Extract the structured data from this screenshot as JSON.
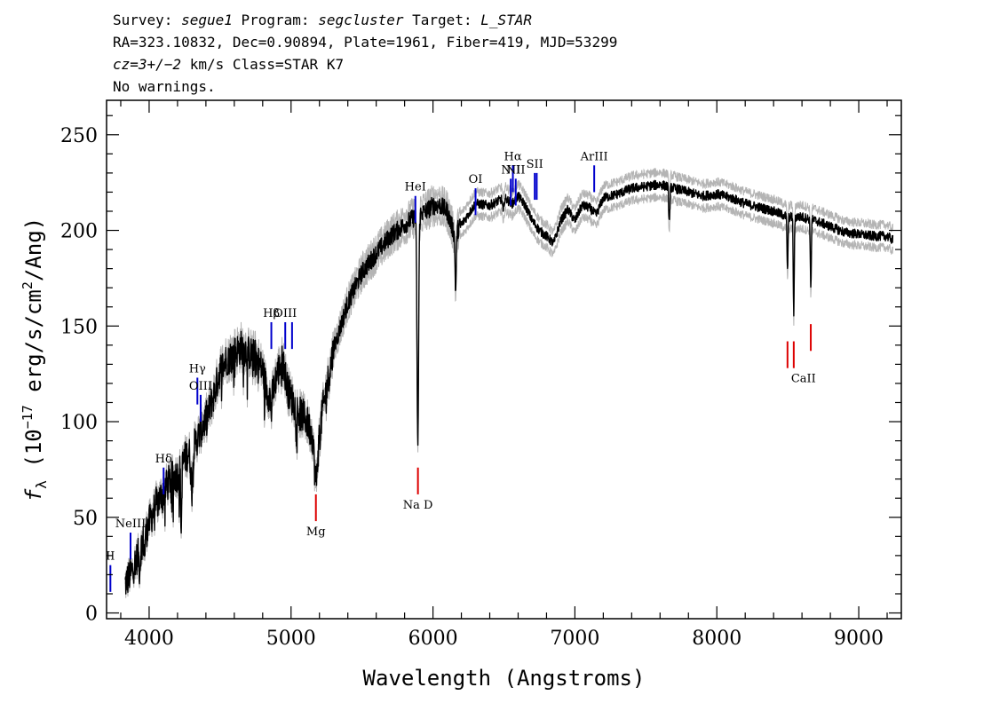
{
  "header": {
    "line1": [
      {
        "text": "Survey: ",
        "italic": false
      },
      {
        "text": "segue1",
        "italic": true
      },
      {
        "text": " Program: ",
        "italic": false
      },
      {
        "text": "segcluster",
        "italic": true
      },
      {
        "text": " Target: ",
        "italic": false
      },
      {
        "text": "L_STAR",
        "italic": true
      }
    ],
    "line2": "RA=323.10832, Dec=0.90894, Plate=1961, Fiber=419, MJD=53299",
    "line3": [
      {
        "text": "cz=3+/−2",
        "italic": true
      },
      {
        "text": " km/s Class=STAR K7",
        "italic": false
      }
    ],
    "line4": "No warnings."
  },
  "chart_data": {
    "type": "line",
    "xlabel": "Wavelength (Angstroms)",
    "ylabel": "f_λ (10^-17 erg/s/cm^2/Ang)",
    "ylabel_parts": {
      "f": "f",
      "lambda": "λ",
      "open": " (10",
      "exp1": "−17",
      "mid": " erg/s/cm",
      "exp2": "2",
      "close": "/Ang)"
    },
    "xlim": [
      3700,
      9300
    ],
    "ylim": [
      -3,
      268
    ],
    "x_ticks": [
      4000,
      5000,
      6000,
      7000,
      8000,
      9000
    ],
    "x_tick_labels": [
      "4000",
      "5000",
      "6000",
      "7000",
      "8000",
      "9000"
    ],
    "y_ticks": [
      0,
      50,
      100,
      150,
      200,
      250
    ],
    "y_tick_labels": [
      "0",
      "50",
      "100",
      "150",
      "200",
      "250"
    ],
    "grid": false,
    "series": [
      {
        "color": "#000000",
        "error_color": "#b4b4b4",
        "continuum_points": [
          [
            3830,
            15
          ],
          [
            3880,
            22
          ],
          [
            3950,
            36
          ],
          [
            4000,
            47
          ],
          [
            4050,
            57
          ],
          [
            4100,
            63
          ],
          [
            4150,
            70
          ],
          [
            4200,
            72
          ],
          [
            4260,
            82
          ],
          [
            4320,
            88
          ],
          [
            4380,
            98
          ],
          [
            4420,
            105
          ],
          [
            4460,
            115
          ],
          [
            4500,
            127
          ],
          [
            4550,
            133
          ],
          [
            4600,
            136
          ],
          [
            4650,
            139
          ],
          [
            4700,
            136
          ],
          [
            4750,
            134
          ],
          [
            4800,
            127
          ],
          [
            4830,
            116
          ],
          [
            4860,
            112
          ],
          [
            4900,
            125
          ],
          [
            4940,
            132
          ],
          [
            4980,
            116
          ],
          [
            5050,
            105
          ],
          [
            5100,
            102
          ],
          [
            5150,
            93
          ],
          [
            5180,
            78
          ],
          [
            5220,
            105
          ],
          [
            5300,
            138
          ],
          [
            5400,
            162
          ],
          [
            5500,
            178
          ],
          [
            5600,
            188
          ],
          [
            5700,
            197
          ],
          [
            5800,
            203
          ],
          [
            5890,
            208
          ],
          [
            5950,
            210
          ],
          [
            6000,
            213
          ],
          [
            6050,
            213
          ],
          [
            6100,
            210
          ],
          [
            6150,
            198
          ],
          [
            6200,
            203
          ],
          [
            6300,
            214
          ],
          [
            6400,
            213
          ],
          [
            6500,
            217
          ],
          [
            6560,
            214
          ],
          [
            6600,
            218
          ],
          [
            6650,
            213
          ],
          [
            6700,
            205
          ],
          [
            6750,
            200
          ],
          [
            6800,
            197
          ],
          [
            6850,
            193
          ],
          [
            6900,
            205
          ],
          [
            6950,
            211
          ],
          [
            7000,
            205
          ],
          [
            7050,
            213
          ],
          [
            7100,
            212
          ],
          [
            7150,
            208
          ],
          [
            7200,
            217
          ],
          [
            7300,
            219
          ],
          [
            7400,
            222
          ],
          [
            7500,
            223
          ],
          [
            7600,
            224
          ],
          [
            7700,
            222
          ],
          [
            7800,
            220
          ],
          [
            7900,
            218
          ],
          [
            8000,
            219
          ],
          [
            8100,
            217
          ],
          [
            8200,
            214
          ],
          [
            8300,
            212
          ],
          [
            8400,
            210
          ],
          [
            8500,
            207
          ],
          [
            8600,
            207
          ],
          [
            8700,
            205
          ],
          [
            8800,
            202
          ],
          [
            8900,
            199
          ],
          [
            9000,
            198
          ],
          [
            9100,
            197
          ],
          [
            9200,
            197
          ],
          [
            9240,
            195
          ]
        ],
        "absorption_lines": [
          {
            "x": 3933,
            "depth": 10,
            "width": 6
          },
          {
            "x": 3968,
            "depth": 8,
            "width": 6
          },
          {
            "x": 4226,
            "depth": 32,
            "width": 5
          },
          {
            "x": 4300,
            "depth": 18,
            "width": 10
          },
          {
            "x": 4861,
            "depth": 8,
            "width": 5
          },
          {
            "x": 5172,
            "depth": 12,
            "width": 12
          },
          {
            "x": 5893,
            "depth": 120,
            "width": 8
          },
          {
            "x": 6160,
            "depth": 30,
            "width": 6
          },
          {
            "x": 6495,
            "depth": 8,
            "width": 6
          },
          {
            "x": 7665,
            "depth": 18,
            "width": 6
          },
          {
            "x": 8498,
            "depth": 28,
            "width": 5
          },
          {
            "x": 8542,
            "depth": 50,
            "width": 5
          },
          {
            "x": 8662,
            "depth": 35,
            "width": 5
          }
        ]
      }
    ],
    "emission_markers": [
      {
        "label": "OII",
        "x": 3727,
        "y": 25,
        "len": 14,
        "visible_label": "II"
      },
      {
        "label": "NeIII",
        "x": 3869,
        "y": 42,
        "len": 14
      },
      {
        "label": "Hδ",
        "x": 4102,
        "y": 76,
        "len": 14
      },
      {
        "label": "Hγ",
        "x": 4340,
        "y": 123,
        "len": 14
      },
      {
        "label": "OIII",
        "x": 4363,
        "y": 114,
        "len": 14
      },
      {
        "label": "Hβ",
        "x": 4861,
        "y": 152,
        "len": 14
      },
      {
        "label": "OIII",
        "x": 4959,
        "y": 152,
        "len": 14
      },
      {
        "label": "",
        "x": 5007,
        "y": 152,
        "len": 14
      },
      {
        "label": "HeI",
        "x": 5876,
        "y": 218,
        "len": 14
      },
      {
        "label": "OI",
        "x": 6300,
        "y": 222,
        "len": 14
      },
      {
        "label": "NII",
        "x": 6548,
        "y": 227,
        "len": 14
      },
      {
        "label": "Hα",
        "x": 6563,
        "y": 234,
        "len": 14
      },
      {
        "label": "NII",
        "x": 6583,
        "y": 227,
        "len": 14
      },
      {
        "label": "SII",
        "x": 6717,
        "y": 230,
        "len": 14
      },
      {
        "label": "",
        "x": 6731,
        "y": 230,
        "len": 14
      },
      {
        "label": "ArIII",
        "x": 7136,
        "y": 234,
        "len": 14
      }
    ],
    "absorption_markers": [
      {
        "label": "",
        "x": 3934,
        "y": -10,
        "len": 14
      },
      {
        "label": "",
        "x": 3969,
        "y": -10,
        "len": 14
      },
      {
        "label": "",
        "x": 4304,
        "y": -3,
        "len": 14
      },
      {
        "label": "Mg",
        "x": 5175,
        "y": 62,
        "len": 14
      },
      {
        "label": "Na D",
        "x": 5894,
        "y": 76,
        "len": 14
      },
      {
        "label": "CaII",
        "x": 8498,
        "y": 142,
        "len": 14
      },
      {
        "label": "",
        "x": 8542,
        "y": 142,
        "len": 14
      },
      {
        "label": "",
        "x": 8662,
        "y": 151,
        "len": 14
      }
    ],
    "colors": {
      "emission": "#0000cc",
      "absorption": "#dd0000",
      "spectrum": "#000000",
      "error": "#b4b4b4"
    }
  }
}
